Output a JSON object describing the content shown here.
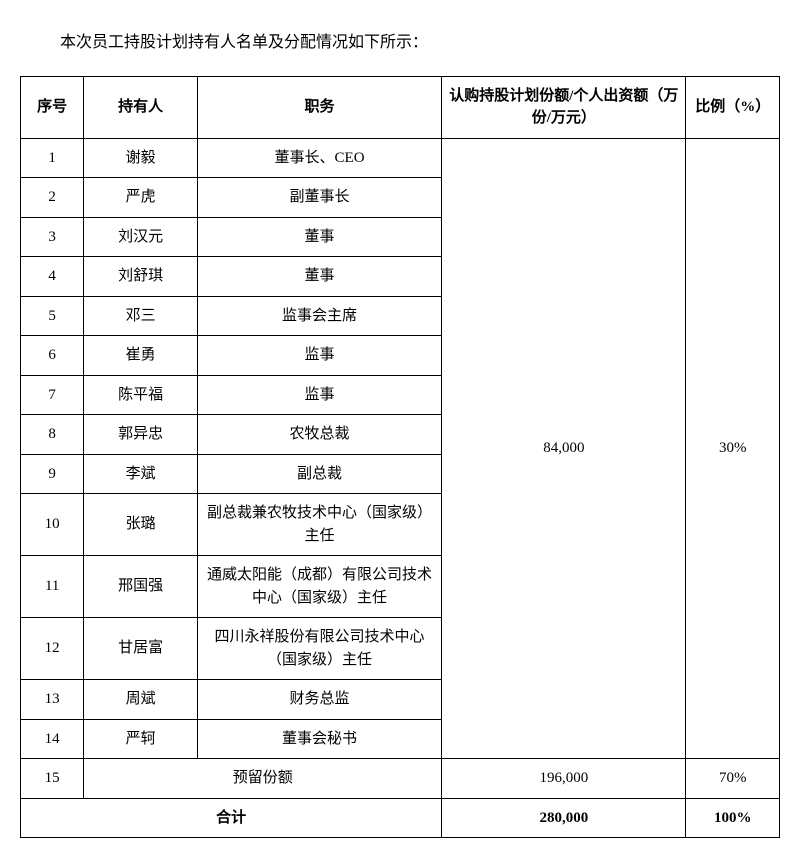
{
  "intro": "本次员工持股计划持有人名单及分配情况如下所示：",
  "headers": {
    "seq": "序号",
    "holder": "持有人",
    "position": "职务",
    "amount": "认购持股计划份额/个人出资额（万份/万元）",
    "ratio": "比例（%）"
  },
  "group": {
    "amount": "84,000",
    "ratio": "30%",
    "rows": [
      {
        "seq": "1",
        "holder": "谢毅",
        "position": "董事长、CEO"
      },
      {
        "seq": "2",
        "holder": "严虎",
        "position": "副董事长"
      },
      {
        "seq": "3",
        "holder": "刘汉元",
        "position": "董事"
      },
      {
        "seq": "4",
        "holder": "刘舒琪",
        "position": "董事"
      },
      {
        "seq": "5",
        "holder": "邓三",
        "position": "监事会主席"
      },
      {
        "seq": "6",
        "holder": "崔勇",
        "position": "监事"
      },
      {
        "seq": "7",
        "holder": "陈平福",
        "position": "监事"
      },
      {
        "seq": "8",
        "holder": "郭异忠",
        "position": "农牧总裁"
      },
      {
        "seq": "9",
        "holder": "李斌",
        "position": "副总裁"
      },
      {
        "seq": "10",
        "holder": "张璐",
        "position": "副总裁兼农牧技术中心（国家级）主任"
      },
      {
        "seq": "11",
        "holder": "邢国强",
        "position": "通威太阳能（成都）有限公司技术中心（国家级）主任"
      },
      {
        "seq": "12",
        "holder": "甘居富",
        "position": "四川永祥股份有限公司技术中心（国家级）主任"
      },
      {
        "seq": "13",
        "holder": "周斌",
        "position": "财务总监"
      },
      {
        "seq": "14",
        "holder": "严轲",
        "position": "董事会秘书"
      }
    ]
  },
  "reserved": {
    "seq": "15",
    "label": "预留份额",
    "amount": "196,000",
    "ratio": "70%"
  },
  "total": {
    "label": "合计",
    "amount": "280,000",
    "ratio": "100%"
  }
}
